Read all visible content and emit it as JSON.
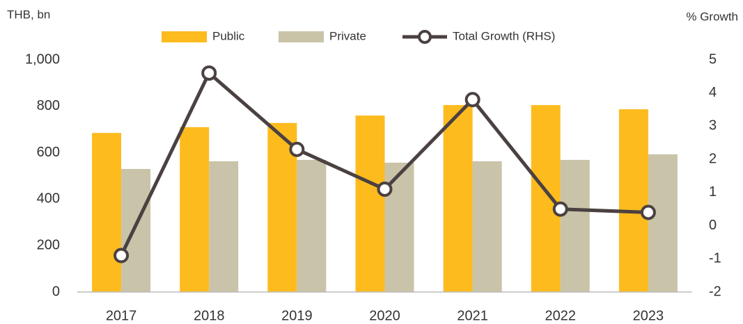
{
  "chart_data": {
    "type": "bar-line",
    "y_label": "THB, bn",
    "y2_label": "% Growth",
    "categories": [
      "2017",
      "2018",
      "2019",
      "2020",
      "2021",
      "2022",
      "2023"
    ],
    "series": [
      {
        "name": "Public",
        "color": "#FDBB1E",
        "type": "bar",
        "values": [
          685,
          710,
          728,
          760,
          805,
          805,
          787
        ]
      },
      {
        "name": "Private",
        "color": "#C9C3A9",
        "type": "bar",
        "values": [
          530,
          563,
          569,
          557,
          563,
          569,
          593
        ]
      },
      {
        "name": "Total Growth (RHS)",
        "color": "#4B4141",
        "type": "line",
        "axis": "y2",
        "values": [
          -0.9,
          4.6,
          2.3,
          1.1,
          3.8,
          0.5,
          0.4
        ]
      }
    ],
    "ylim": [
      0,
      1000
    ],
    "yticks": [
      0,
      200,
      400,
      600,
      800,
      {
        "value": 1000,
        "label": "1,000"
      }
    ],
    "y2lim": [
      -2,
      5
    ],
    "y2ticks": [
      -2,
      -1,
      0,
      1,
      2,
      3,
      4,
      5
    ],
    "legend": "top"
  }
}
